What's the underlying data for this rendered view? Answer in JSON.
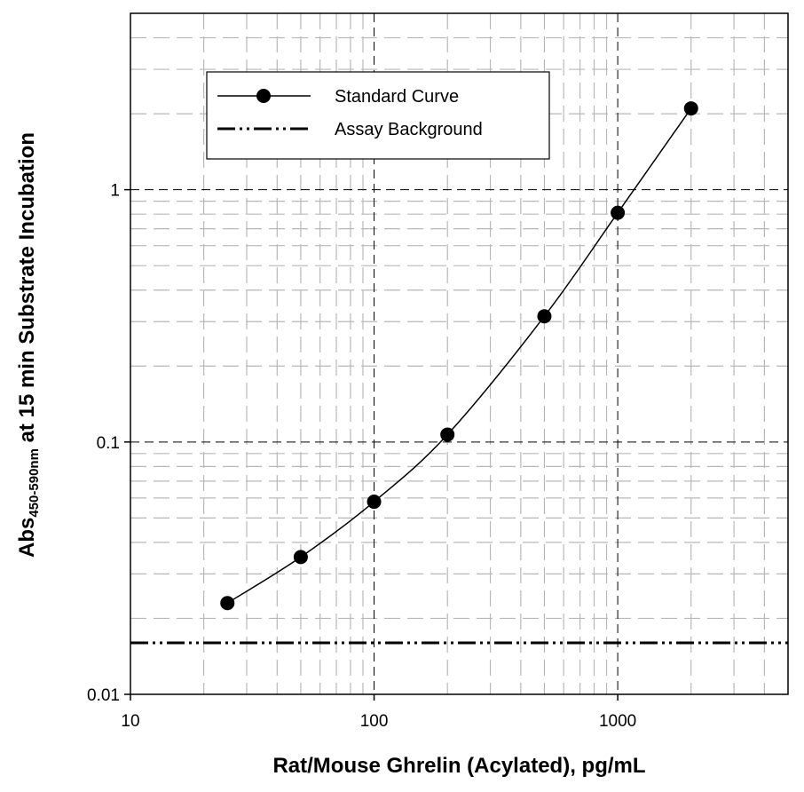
{
  "chart_data": {
    "type": "line",
    "xlabel": "Rat/Mouse Ghrelin (Acylated), pg/mL",
    "ylabel_main": "Abs",
    "ylabel_sub": "450-590nm",
    "ylabel_rest": " at 15 min Substrate Incubation",
    "x_scale": "log",
    "y_scale": "log",
    "xlim": [
      10,
      5000
    ],
    "ylim": [
      0.01,
      5
    ],
    "x_ticks": [
      10,
      100,
      1000
    ],
    "x_tick_labels": [
      "10",
      "100",
      "1000"
    ],
    "y_ticks": [
      0.01,
      0.1,
      1
    ],
    "y_tick_labels": [
      "0.01",
      "0.1",
      "1"
    ],
    "grid": true,
    "legend_position": "top-left",
    "series": [
      {
        "name": "Standard Curve",
        "x": [
          25,
          50,
          100,
          200,
          500,
          1000,
          2000
        ],
        "y": [
          0.023,
          0.035,
          0.058,
          0.107,
          0.315,
          0.81,
          2.1
        ]
      }
    ],
    "reference_lines": [
      {
        "name": "Assay Background",
        "y": 0.016
      }
    ]
  }
}
